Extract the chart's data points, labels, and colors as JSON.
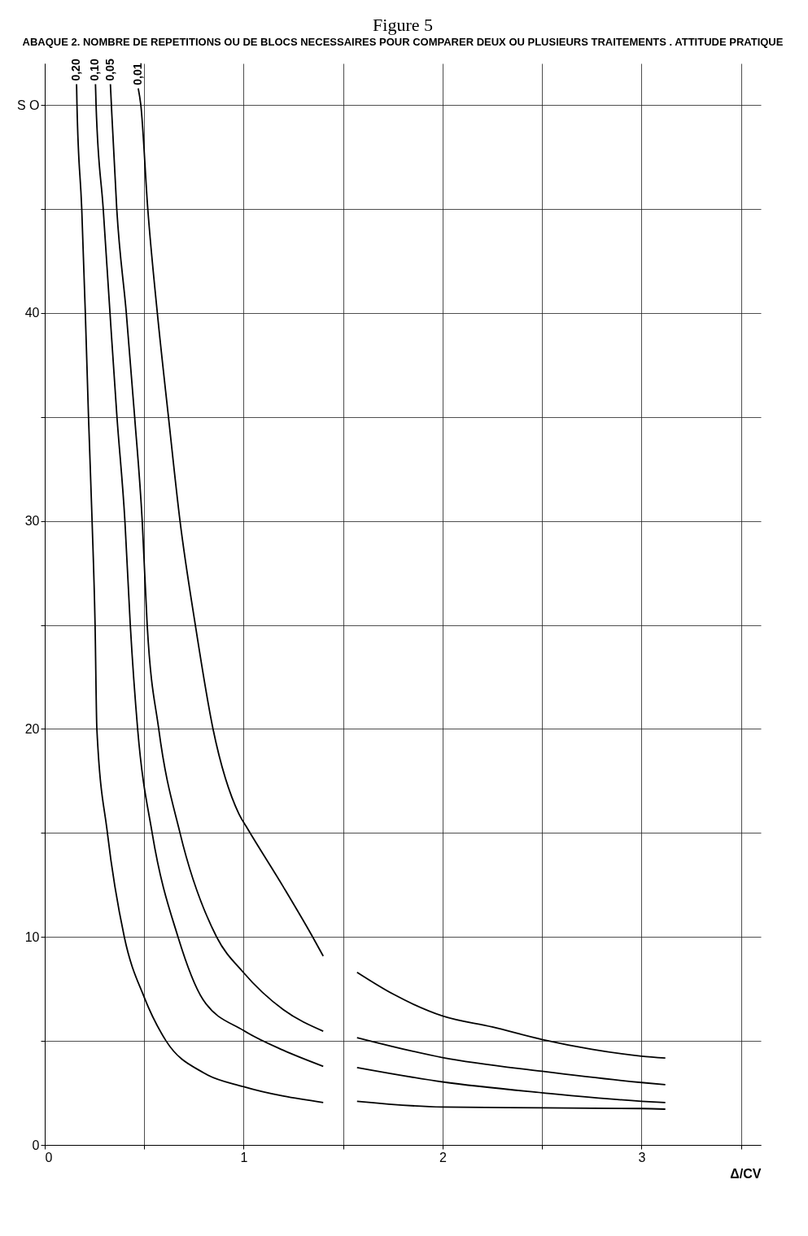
{
  "chart_data": {
    "type": "line",
    "title": "Figure 5",
    "subtitle": "ABAQUE 2. NOMBRE DE REPETITIONS OU DE BLOCS NECESSAIRES POUR COMPARER DEUX OU PLUSIEURS TRAITEMENTS . ATTITUDE PRATIQUE",
    "xlabel": "Δ/CV",
    "xlim": [
      0,
      3.6
    ],
    "ylim": [
      0,
      52
    ],
    "xticks": [
      0,
      {
        "value": 0.5,
        "label": null
      },
      1,
      {
        "value": 1.5,
        "label": null
      },
      2,
      {
        "value": 2.5,
        "label": null
      },
      3,
      {
        "value": 3.5,
        "label": null
      }
    ],
    "yticks": [
      0,
      {
        "value": 5,
        "label": null
      },
      10,
      {
        "value": 15,
        "label": null
      },
      20,
      {
        "value": 25,
        "label": null
      },
      30,
      {
        "value": 35,
        "label": null
      },
      40,
      {
        "value": 45,
        "label": null
      },
      {
        "value": 50,
        "label": "S O"
      }
    ],
    "grid": true,
    "legend": false,
    "marker": "none",
    "line_style": "solid",
    "series": [
      {
        "name": "0,20",
        "color": "#000000",
        "x": [
          0.16,
          0.162,
          0.186,
          0.204,
          0.22,
          0.238,
          0.253,
          0.262,
          0.315,
          0.4,
          0.5,
          0.61,
          0.8,
          1.0,
          1.4,
          1.5,
          1.57,
          2.0,
          2.5,
          3.0,
          3.12
        ],
        "values": [
          51,
          50,
          45,
          40,
          35,
          30,
          25,
          20,
          15,
          10,
          7.1,
          5,
          3.46,
          2.8,
          2.04,
          null,
          2.1,
          1.82,
          1.78,
          1.75,
          1.72
        ]
      },
      {
        "name": "0,10",
        "color": "#000000",
        "x": [
          0.255,
          0.258,
          0.294,
          0.328,
          0.363,
          0.403,
          0.43,
          0.467,
          0.54,
          0.67,
          0.795,
          1.0,
          1.2,
          1.4,
          1.5,
          1.57,
          2.0,
          2.5,
          3.0,
          3.12
        ],
        "values": [
          51,
          50,
          45,
          40,
          35,
          30,
          25,
          20,
          15,
          10,
          7,
          5.5,
          4.55,
          3.78,
          null,
          3.72,
          3.03,
          2.51,
          2.1,
          2.04
        ]
      },
      {
        "name": "0,05",
        "color": "#000000",
        "x": [
          0.33,
          0.335,
          0.362,
          0.41,
          0.452,
          0.49,
          0.515,
          0.573,
          0.68,
          0.864,
          1.0,
          1.2,
          1.4,
          1.5,
          1.57,
          2.0,
          2.5,
          3.0,
          3.12
        ],
        "values": [
          51,
          50,
          45,
          40,
          35,
          30,
          25,
          20,
          15,
          10,
          8.28,
          6.5,
          5.47,
          null,
          5.16,
          4.2,
          3.54,
          3.0,
          2.9
        ]
      },
      {
        "name": "0,01",
        "color": "#000000",
        "x": [
          0.47,
          0.483,
          0.518,
          0.566,
          0.622,
          0.68,
          0.757,
          0.846,
          0.977,
          1.02,
          1.2,
          1.347,
          1.4,
          1.5,
          1.57,
          1.75,
          2.0,
          2.25,
          2.5,
          2.75,
          3.0,
          3.12
        ],
        "values": [
          50.8,
          50,
          45,
          40,
          35,
          30,
          25,
          20,
          15.9,
          15.2,
          12.4,
          10,
          9.08,
          null,
          8.3,
          7.26,
          6.2,
          5.67,
          5.07,
          4.6,
          4.27,
          4.18
        ]
      }
    ]
  }
}
